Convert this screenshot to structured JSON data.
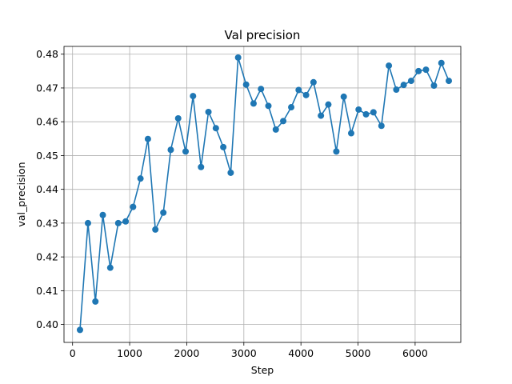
{
  "chart_data": {
    "type": "line",
    "title": "Val precision",
    "xlabel": "Step",
    "ylabel": "val_precision",
    "xlim": [
      -150,
      6800
    ],
    "ylim": [
      0.3947,
      0.4823
    ],
    "xticks": [
      0,
      1000,
      2000,
      3000,
      4000,
      5000,
      6000
    ],
    "yticks": [
      0.4,
      0.41,
      0.42,
      0.43,
      0.44,
      0.45,
      0.46,
      0.47,
      0.48
    ],
    "xtick_labels": [
      "0",
      "1000",
      "2000",
      "3000",
      "4000",
      "5000",
      "6000"
    ],
    "ytick_labels": [
      "0.40",
      "0.41",
      "0.42",
      "0.43",
      "0.44",
      "0.45",
      "0.46",
      "0.47",
      "0.48"
    ],
    "grid": true,
    "color": "#1f77b4",
    "markers": "circle",
    "series": [
      {
        "x": [
          130,
          270,
          400,
          530,
          660,
          800,
          930,
          1060,
          1190,
          1320,
          1450,
          1590,
          1720,
          1850,
          1980,
          2110,
          2250,
          2380,
          2510,
          2640,
          2770,
          2900,
          3040,
          3170,
          3300,
          3430,
          3560,
          3690,
          3830,
          3960,
          4090,
          4220,
          4350,
          4480,
          4620,
          4750,
          4880,
          5010,
          5140,
          5270,
          5410,
          5540,
          5670,
          5800,
          5930,
          6060,
          6190,
          6330,
          6460,
          6590
        ],
        "y": [
          0.3984,
          0.43,
          0.4068,
          0.4324,
          0.4168,
          0.43,
          0.4305,
          0.4348,
          0.4432,
          0.4549,
          0.4281,
          0.4331,
          0.4517,
          0.461,
          0.4512,
          0.4676,
          0.4466,
          0.4629,
          0.4581,
          0.4525,
          0.4449,
          0.479,
          0.471,
          0.4654,
          0.4697,
          0.4647,
          0.4577,
          0.4602,
          0.4643,
          0.4694,
          0.4679,
          0.4717,
          0.4618,
          0.4651,
          0.4512,
          0.4674,
          0.4566,
          0.4636,
          0.4622,
          0.4628,
          0.4588,
          0.4766,
          0.4695,
          0.4709,
          0.4721,
          0.475,
          0.4754,
          0.4707,
          0.4774,
          0.4721
        ]
      }
    ]
  }
}
